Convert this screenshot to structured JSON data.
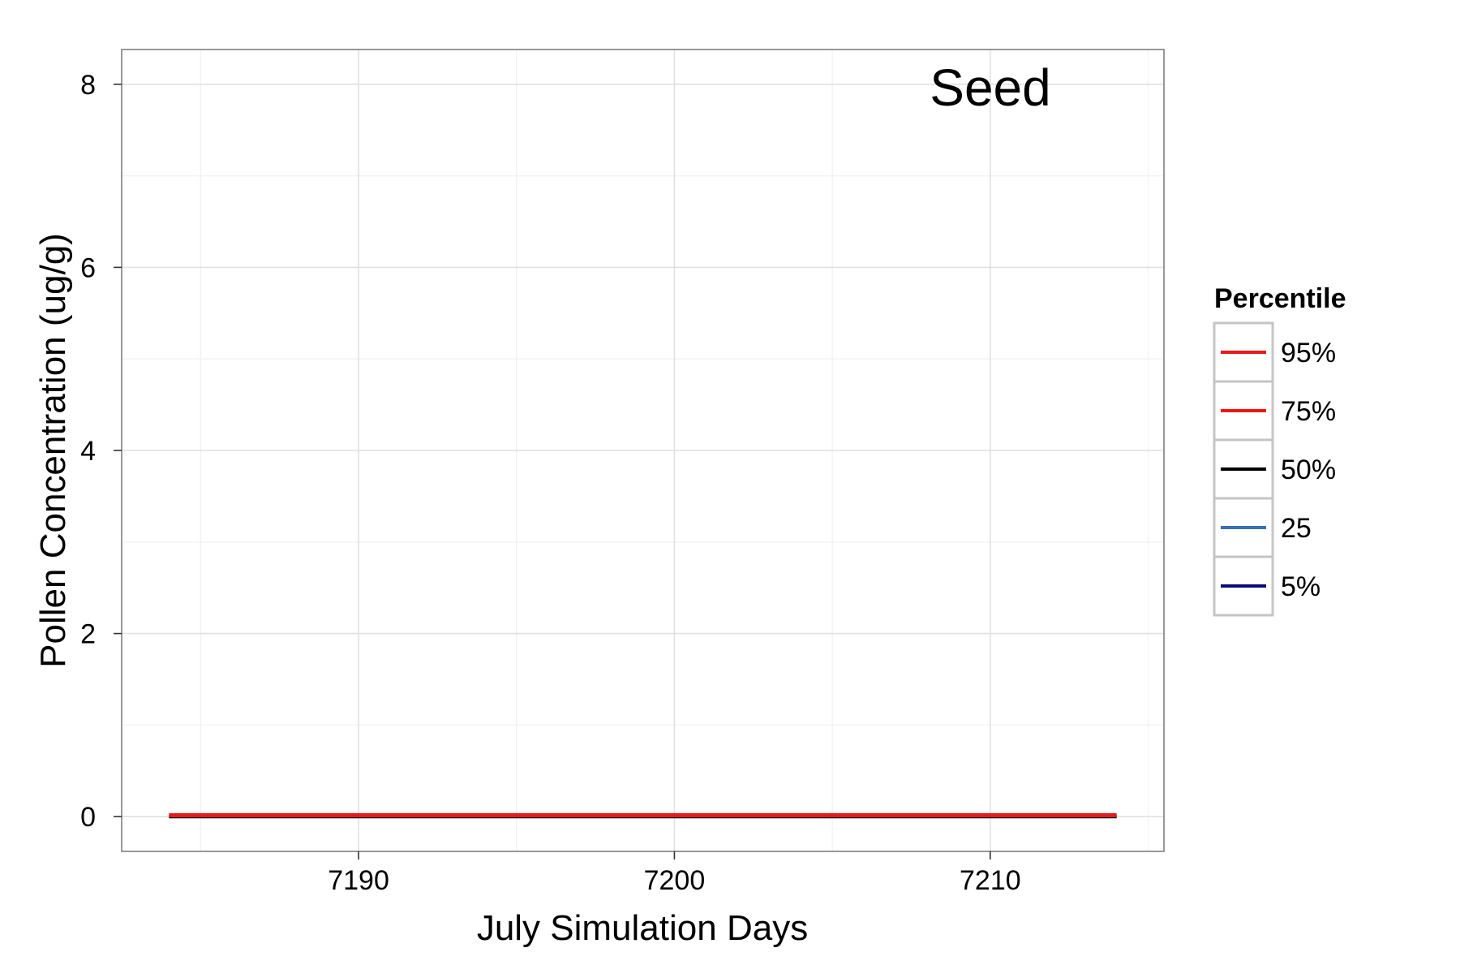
{
  "chart_data": {
    "type": "line",
    "annotation": "Seed",
    "xlabel": "July Simulation Days",
    "ylabel": "Pollen Concentration (ug/g)",
    "xlim": [
      7182.5,
      7215.5
    ],
    "ylim": [
      -0.38,
      8.38
    ],
    "x_ticks": [
      7190,
      7200,
      7210
    ],
    "y_ticks": [
      0,
      2,
      4,
      6,
      8
    ],
    "grid": true,
    "legend": {
      "title": "Percentile",
      "placement": "right"
    },
    "series": [
      {
        "name": "95%",
        "color": "#e41a1c",
        "x": [
          7184,
          7214
        ],
        "y": [
          0.02,
          0.02
        ]
      },
      {
        "name": "75%",
        "color": "#f0150f",
        "x": [
          7184,
          7214
        ],
        "y": [
          0.01,
          0.01
        ]
      },
      {
        "name": "50%",
        "color": "#000000",
        "x": [
          7184,
          7214
        ],
        "y": [
          0.0,
          0.0
        ]
      },
      {
        "name": "25",
        "color": "#3a6fb0",
        "x": [
          7184,
          7214
        ],
        "y": [
          0.0,
          0.0
        ]
      },
      {
        "name": "5%",
        "color": "#0a0a7a",
        "x": [
          7184,
          7214
        ],
        "y": [
          0.0,
          0.0
        ]
      }
    ]
  }
}
